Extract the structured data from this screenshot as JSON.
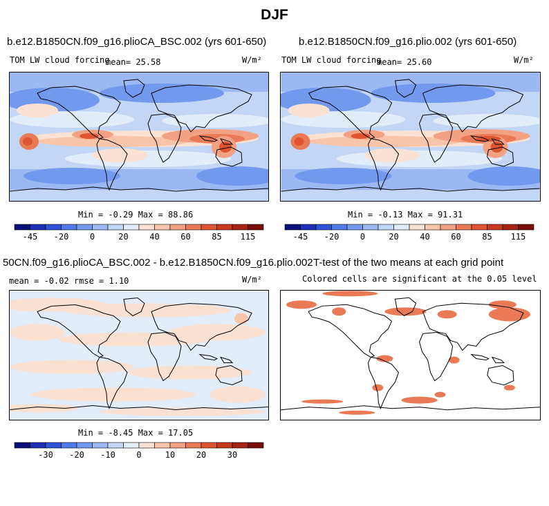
{
  "page_title": "DJF",
  "panels": [
    {
      "title": "b.e12.B1850CN.f09_g16.plioCA_BSC.002 (yrs 601-650)",
      "variable": "TOM LW cloud forcing",
      "mean_text": "mean=  25.58",
      "units": "W/m²",
      "minmax": "Min =  -0.29 Max =  88.86"
    },
    {
      "title": "b.e12.B1850CN.f09_g16.plio.002 (yrs 601-650)",
      "variable": "TOM LW cloud forcing",
      "mean_text": "mean=  25.60",
      "units": "W/m²",
      "minmax": "Min =  -0.13 Max =  91.31"
    },
    {
      "title": "50CN.f09_g16.plioCA_BSC.002 - b.e12.B1850CN.f09_g16.plio.002",
      "stats_text": "mean =  -0.02    rmse =   1.10",
      "units": "W/m²",
      "minmax": "Min =  -8.45 Max =  17.05"
    },
    {
      "title": "T-test of the two means at each grid point",
      "note": "Colored cells are significant at the 0.05 level"
    }
  ],
  "colorbars": {
    "abs": {
      "colors": [
        "#0a0f7a",
        "#1c2fb5",
        "#2f55d6",
        "#4f7be8",
        "#7399ee",
        "#9bb8f2",
        "#c2d6f6",
        "#e3ecf9",
        "#fbe1d2",
        "#f8c4aa",
        "#f2a282",
        "#ea7a55",
        "#dd5530",
        "#c53a1d",
        "#a52313",
        "#7a0e08"
      ],
      "labels": [
        "-45",
        "-20",
        "0",
        "20",
        "40",
        "60",
        "85",
        "115"
      ]
    },
    "diff": {
      "colors": [
        "#0a0f7a",
        "#1c2fb5",
        "#2f55d6",
        "#4f7be8",
        "#7399ee",
        "#9bb8f2",
        "#c2d6f6",
        "#e3ecf9",
        "#fbe1d2",
        "#f8c4aa",
        "#f2a282",
        "#ea7a55",
        "#dd5530",
        "#c53a1d",
        "#a52313",
        "#7a0e08"
      ],
      "labels": [
        "-30",
        "-20",
        "-10",
        "0",
        "10",
        "20",
        "30"
      ]
    }
  },
  "chart_data": [
    {
      "type": "heatmap",
      "title": "b.e12.B1850CN.f09_g16.plioCA_BSC.002 (yrs 601-650)",
      "mean": 25.58,
      "min": -0.29,
      "max": 88.86,
      "levels": [
        -45,
        -35,
        -20,
        -10,
        0,
        10,
        20,
        30,
        40,
        50,
        60,
        70,
        85,
        100,
        115
      ]
    },
    {
      "type": "heatmap",
      "title": "b.e12.B1850CN.f09_g16.plio.002 (yrs 601-650)",
      "mean": 25.6,
      "min": -0.13,
      "max": 91.31,
      "levels": [
        -45,
        -35,
        -20,
        -10,
        0,
        10,
        20,
        30,
        40,
        50,
        60,
        70,
        85,
        100,
        115
      ]
    },
    {
      "type": "heatmap",
      "title": "50CN.f09_g16.plioCA_BSC.002 - b.e12.B1850CN.f09_g16.plio.002",
      "mean": -0.02,
      "rmse": 1.1,
      "min": -8.45,
      "max": 17.05,
      "levels": [
        -35,
        -30,
        -25,
        -20,
        -15,
        -10,
        -5,
        0,
        5,
        10,
        15,
        20,
        25,
        30,
        35
      ]
    },
    {
      "type": "heatmap",
      "title": "T-test of the two means at each grid point",
      "significance_level": 0.05
    }
  ]
}
